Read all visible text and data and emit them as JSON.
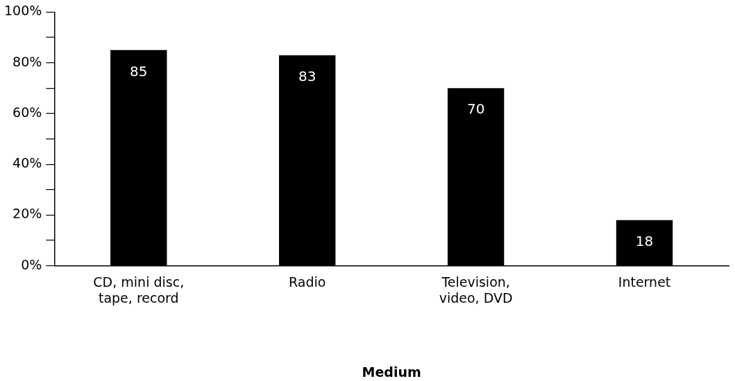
{
  "chart_data": {
    "type": "bar",
    "xlabel": "Medium",
    "categories": [
      "CD, mini disc, tape, record",
      "Radio",
      "Television, video, DVD",
      "Internet"
    ],
    "values": [
      85,
      83,
      70,
      18
    ],
    "color": "#000000",
    "ylim": [
      0,
      100
    ],
    "yticks": [
      {
        "value": 0,
        "label": "0%"
      },
      {
        "value": 10,
        "label": null
      },
      {
        "value": 20,
        "label": "20%"
      },
      {
        "value": 30,
        "label": null
      },
      {
        "value": 40,
        "label": "40%"
      },
      {
        "value": 50,
        "label": null
      },
      {
        "value": 60,
        "label": "60%"
      },
      {
        "value": 70,
        "label": null
      },
      {
        "value": 80,
        "label": "80%"
      },
      {
        "value": 90,
        "label": null
      },
      {
        "value": 100,
        "label": "100%"
      }
    ],
    "data_labels": true,
    "grid": false,
    "legend": false
  }
}
